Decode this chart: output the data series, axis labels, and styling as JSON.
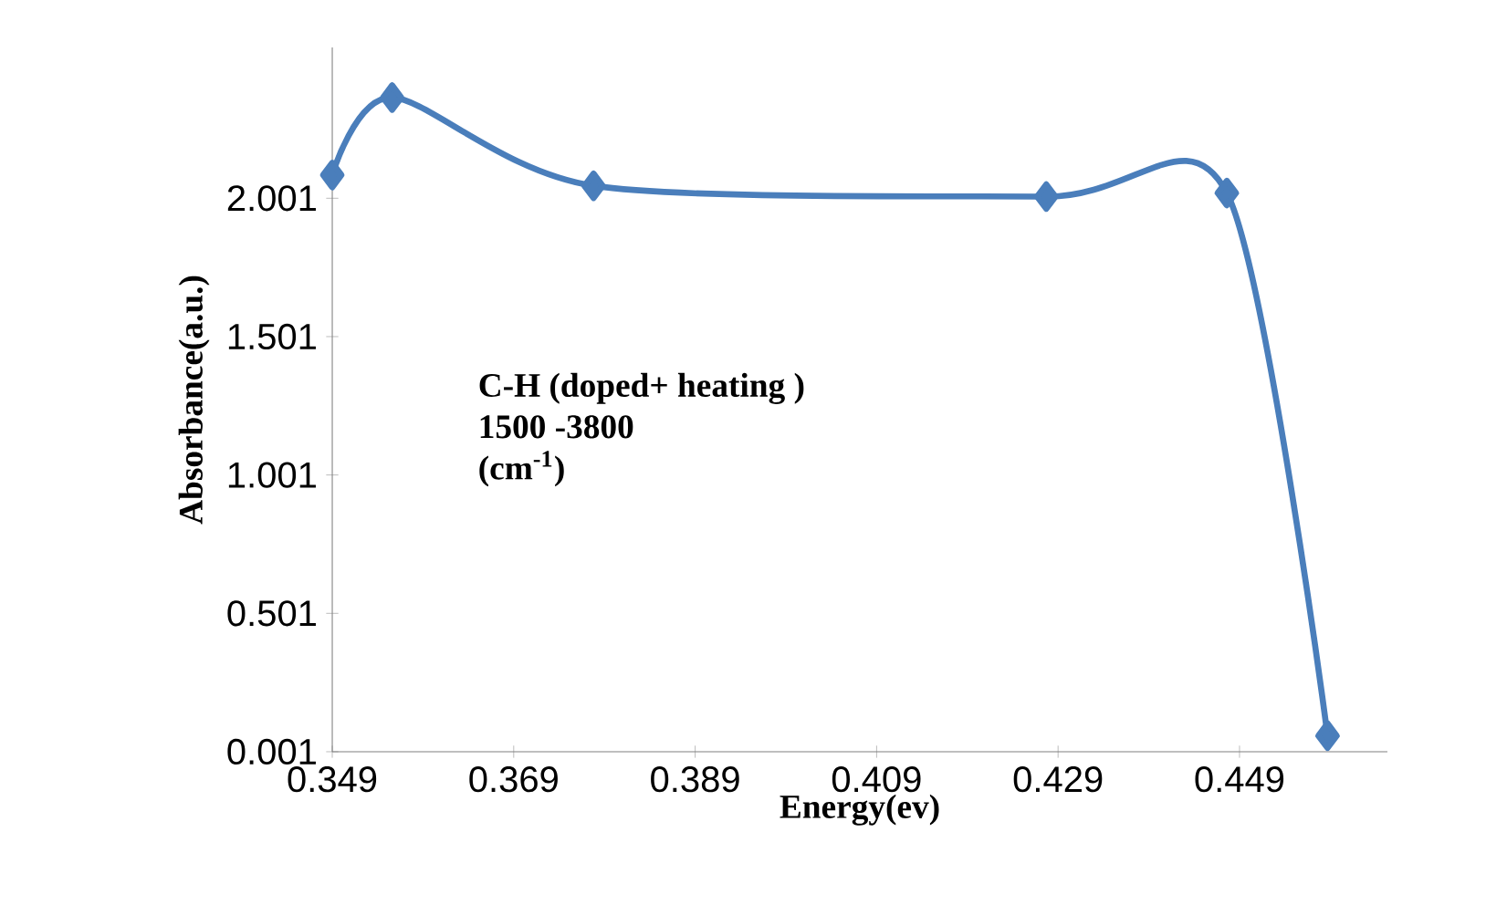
{
  "chart_data": {
    "type": "line",
    "xlabel": "Energy(ev)",
    "ylabel": "Absorbance(a.u.)",
    "annotations": [
      "C-H (doped+ heating )",
      "1500 -3800",
      "(cm$^{-1}$)"
    ],
    "x": [
      0.349,
      0.3556,
      0.3778,
      0.4277,
      0.4476,
      0.4587
    ],
    "series": [
      {
        "color": "#4a7ebb",
        "values": [
          2.085,
          2.365,
          2.046,
          2.007,
          2.02,
          0.059
        ]
      }
    ],
    "xlim": [
      0.349,
      0.4653
    ],
    "ylim": [
      0.001,
      2.546
    ],
    "xticks": [
      0.349,
      0.369,
      0.389,
      0.409,
      0.429,
      0.449
    ],
    "yticks": [
      0.001,
      0.501,
      1.001,
      1.501,
      2.001
    ],
    "marker": "diamond",
    "line_style": "solid"
  }
}
